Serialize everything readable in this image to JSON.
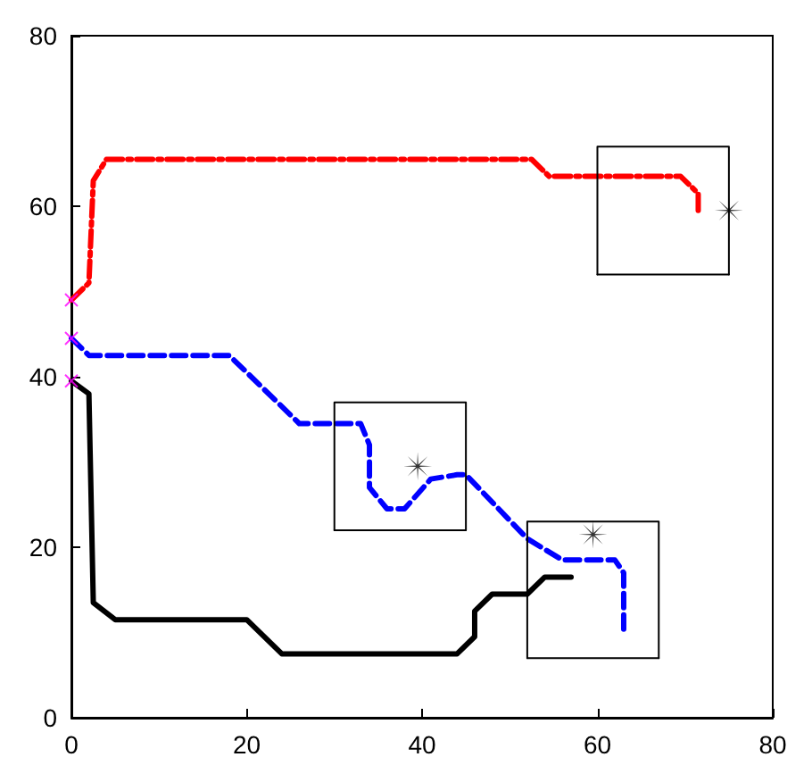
{
  "chart_data": {
    "type": "line",
    "xlim": [
      0,
      80
    ],
    "ylim": [
      0,
      80
    ],
    "xticks": [
      0,
      20,
      40,
      60,
      80
    ],
    "yticks": [
      0,
      20,
      40,
      60,
      80
    ],
    "marker": "none",
    "series": [
      {
        "color": "#ff0000",
        "line_style": "dashdot",
        "x": [
          0,
          2,
          2.5,
          4,
          52.5,
          54.5,
          69.5,
          71.5,
          71.5
        ],
        "values": [
          49,
          51,
          63,
          65.5,
          65.5,
          63.5,
          63.5,
          61.5,
          59
        ]
      },
      {
        "color": "#0000ff",
        "line_style": "dashed",
        "x": [
          0,
          2,
          18,
          26,
          33,
          34,
          34,
          36,
          38,
          41,
          44,
          45,
          52,
          56,
          62,
          63,
          63
        ],
        "values": [
          44.5,
          42.5,
          42.5,
          34.5,
          34.5,
          32,
          27,
          24.5,
          24.5,
          28,
          28.5,
          28.5,
          21,
          18.5,
          18.5,
          17,
          10
        ]
      },
      {
        "color": "#000000",
        "line_style": "solid",
        "x": [
          0,
          2,
          2.5,
          5,
          20,
          24,
          44,
          46,
          46,
          48,
          52,
          54,
          57
        ],
        "values": [
          39.5,
          38,
          13.5,
          11.5,
          11.5,
          7.5,
          7.5,
          9.5,
          12.5,
          14.5,
          14.5,
          16.5,
          16.5
        ]
      },
      {
        "color": "#000000",
        "line_style": "solid",
        "x": [
          60,
          60,
          75,
          75
        ],
        "values": [
          52,
          67,
          67,
          52
        ]
      },
      {
        "color": "#000000",
        "line_style": "solid",
        "x": [
          60,
          75
        ],
        "values": [
          52,
          52
        ]
      },
      {
        "color": "#000000",
        "line_style": "solid",
        "x": [
          30,
          30,
          45,
          45
        ],
        "values": [
          22,
          37,
          37,
          22
        ]
      },
      {
        "color": "#000000",
        "line_style": "solid",
        "x": [
          30,
          45
        ],
        "values": [
          22,
          22
        ]
      },
      {
        "color": "#000000",
        "line_style": "solid",
        "x": [
          52,
          52,
          67,
          67
        ],
        "values": [
          7,
          23,
          23,
          7
        ]
      },
      {
        "color": "#000000",
        "line_style": "solid",
        "x": [
          52,
          67
        ],
        "values": [
          7,
          7
        ]
      },
      {
        "type": "scatter",
        "marker": "star",
        "color": "#000000",
        "x": [
          75,
          39.5,
          59.5
        ],
        "values": [
          59.5,
          29.5,
          21.5
        ]
      },
      {
        "type": "scatter",
        "marker": "cross",
        "color": "#ff00ff",
        "x": [
          0,
          0,
          0
        ],
        "values": [
          49,
          44.5,
          39.5
        ]
      }
    ]
  }
}
